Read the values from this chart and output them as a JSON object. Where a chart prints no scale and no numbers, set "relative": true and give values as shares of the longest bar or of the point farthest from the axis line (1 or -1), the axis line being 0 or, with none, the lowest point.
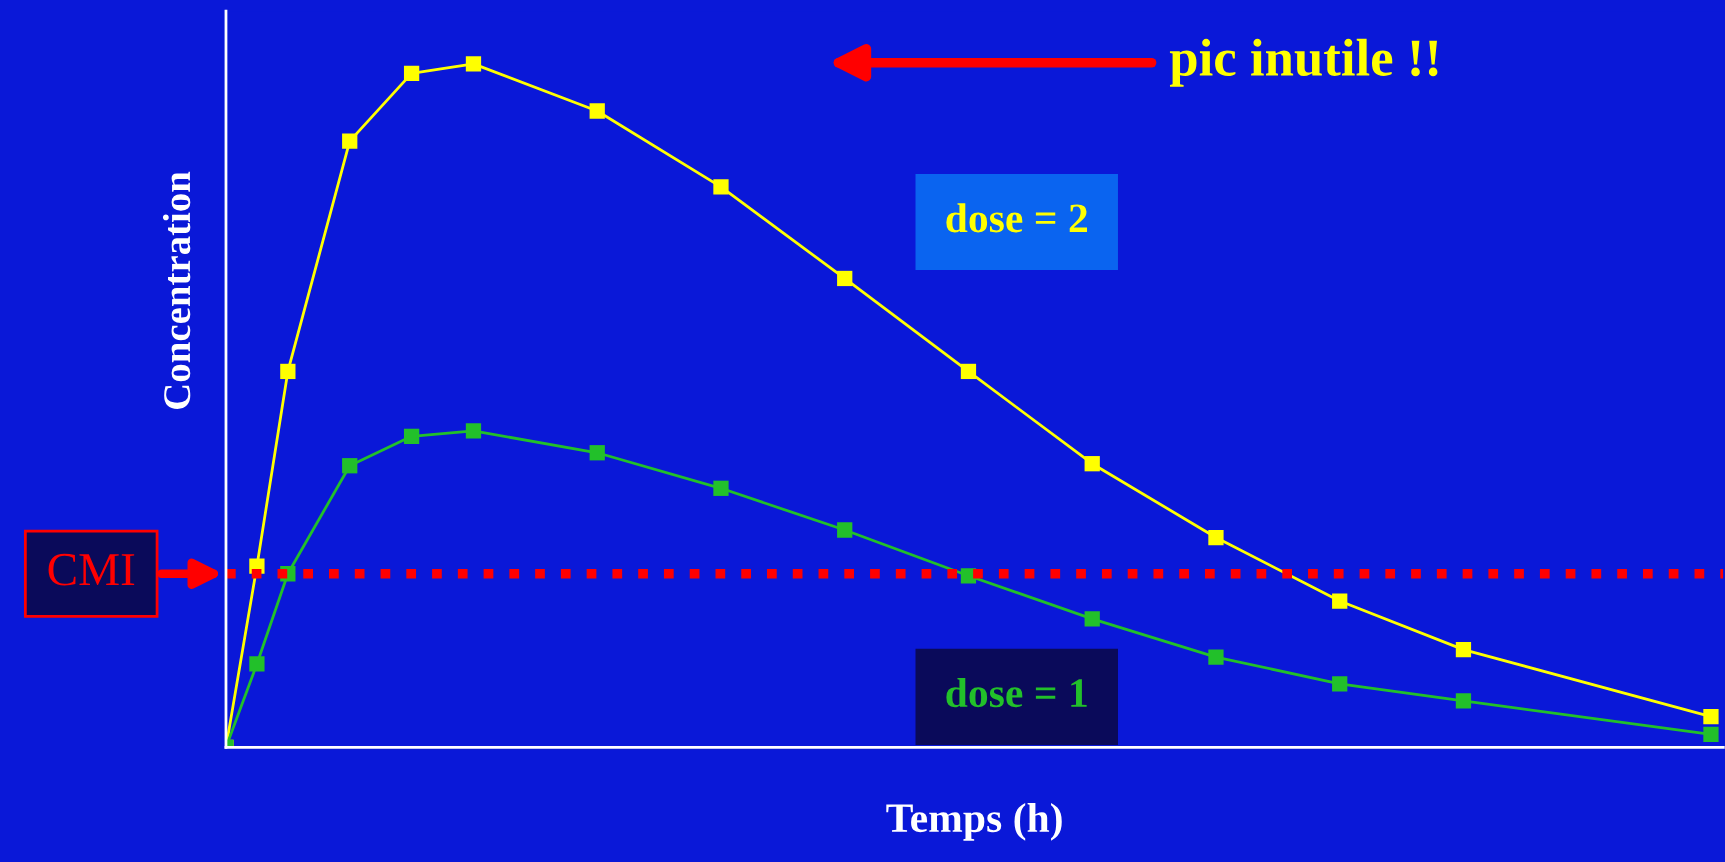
{
  "chart_data": {
    "type": "line",
    "relative": true,
    "xlabel": "Temps (h)",
    "ylabel": "Concentration",
    "categories": [
      null,
      null,
      null,
      null,
      null,
      null,
      null,
      null,
      null,
      null,
      null,
      null,
      null,
      null,
      null,
      null,
      null,
      null,
      null,
      null,
      null,
      null,
      null,
      null,
      null,
      null,
      null,
      null,
      null,
      null,
      null,
      null,
      null,
      null,
      null,
      null,
      null,
      null,
      null,
      null,
      null,
      null,
      null,
      null,
      null,
      null,
      null,
      null,
      null
    ],
    "tick_labels": false,
    "marker": "square",
    "line_style": "solid",
    "series": [
      {
        "name": "dose = 2",
        "color": "#ffff00",
        "values": [
          0,
          0.265,
          0.55,
          null,
          0.887,
          null,
          0.986,
          null,
          1.0,
          null,
          null,
          null,
          0.931,
          null,
          null,
          null,
          0.82,
          null,
          null,
          null,
          0.686,
          null,
          null,
          null,
          0.55,
          null,
          null,
          null,
          0.415,
          null,
          null,
          null,
          0.307,
          null,
          null,
          null,
          0.214,
          null,
          null,
          null,
          0.143,
          null,
          null,
          null,
          null,
          null,
          null,
          null,
          0.045
        ]
      },
      {
        "name": "dose = 1",
        "color": "#22c02a",
        "values": [
          0,
          0.122,
          0.254,
          null,
          0.412,
          null,
          0.455,
          null,
          0.463,
          null,
          null,
          null,
          0.431,
          null,
          null,
          null,
          0.379,
          null,
          null,
          null,
          0.318,
          null,
          null,
          null,
          0.251,
          null,
          null,
          null,
          0.188,
          null,
          null,
          null,
          0.132,
          null,
          null,
          null,
          0.093,
          null,
          null,
          null,
          0.068,
          null,
          null,
          null,
          null,
          null,
          null,
          null,
          0.019
        ]
      }
    ],
    "ref_lines": [
      {
        "axis": "y",
        "value": 0.254,
        "label": "CMI",
        "color": "#ff0000",
        "line_style": "dotted"
      }
    ],
    "annotations": [
      "pic inutile !!"
    ]
  }
}
